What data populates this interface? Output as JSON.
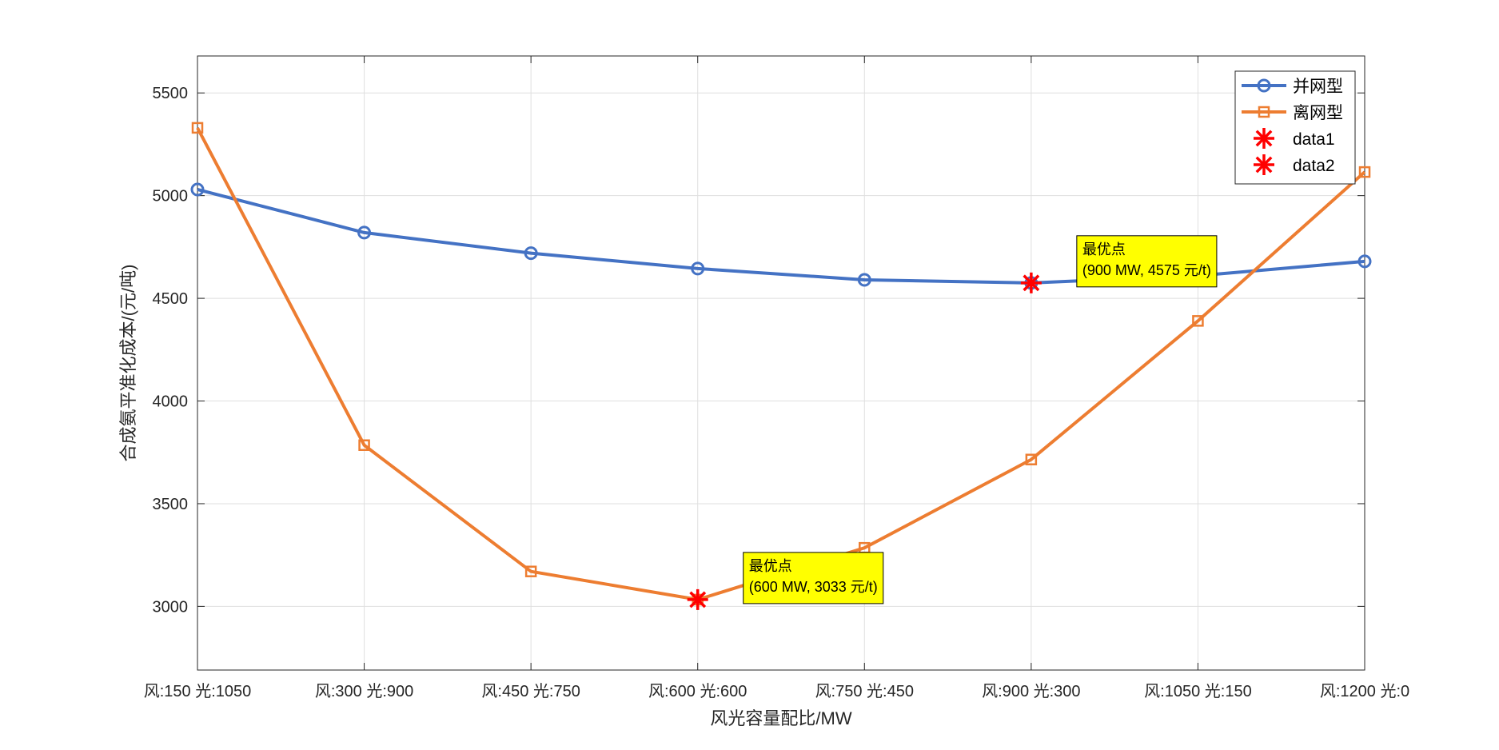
{
  "chart_data": {
    "type": "line",
    "categories": [
      "风:150 光:1050",
      "风:300 光:900",
      "风:450 光:750",
      "风:600 光:600",
      "风:750 光:450",
      "风:900 光:300",
      "风:1050 光:150",
      "风:1200 光:0"
    ],
    "series": [
      {
        "name": "并网型",
        "color": "#4472C4",
        "marker": "circle",
        "values": [
          5030,
          4820,
          4720,
          4645,
          4590,
          4575,
          4610,
          4680
        ]
      },
      {
        "name": "离网型",
        "color": "#ED7D31",
        "marker": "square",
        "values": [
          5330,
          3785,
          3170,
          3033,
          3285,
          3715,
          4390,
          5115
        ]
      }
    ],
    "highlights": [
      {
        "name": "data1",
        "color": "#FF0000",
        "marker": "asterisk",
        "category_index": 5,
        "value": 4575
      },
      {
        "name": "data2",
        "color": "#FF0000",
        "marker": "asterisk",
        "category_index": 3,
        "value": 3033
      }
    ],
    "annotations": [
      {
        "line1": "最优点",
        "line2": "(900 MW, 4575 元/t)",
        "background": "#FFFF00",
        "anchor_index": 5,
        "anchor_value": 4575
      },
      {
        "line1": "最优点",
        "line2": "(600 MW, 3033 元/t)",
        "background": "#FFFF00",
        "anchor_index": 3,
        "anchor_value": 3033
      }
    ],
    "xlabel": "风光容量配比/MW",
    "ylabel": "合成氨平准化成本/(元/吨)",
    "ylim": [
      2690,
      5680
    ],
    "yticks": [
      3000,
      3500,
      4000,
      4500,
      5000,
      5500
    ],
    "grid": true,
    "legend_position": "top-right"
  }
}
